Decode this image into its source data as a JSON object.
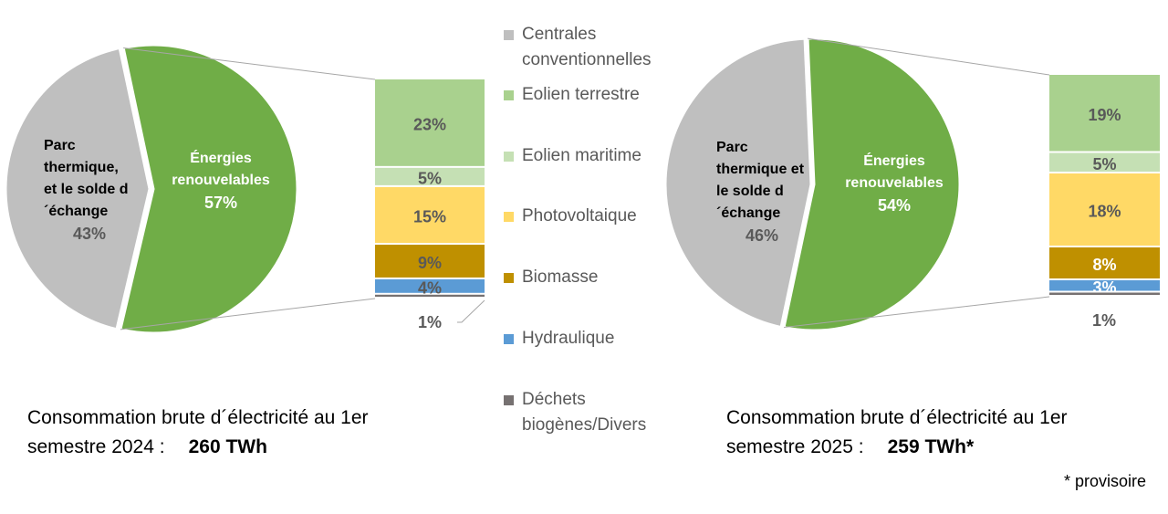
{
  "legend": [
    {
      "label": "Centrales conventionnelles",
      "color": "#bfbfbf"
    },
    {
      "label": "Eolien terrestre",
      "color": "#a9d18e"
    },
    {
      "label": "Eolien maritime",
      "color": "#c5e0b4"
    },
    {
      "label": "Photovoltaique",
      "color": "#ffd966"
    },
    {
      "label": "Biomasse",
      "color": "#bf9000"
    },
    {
      "label": "Hydraulique",
      "color": "#5b9bd5"
    },
    {
      "label": "Déchets biogènes/Divers",
      "color": "#767171"
    }
  ],
  "chart_data": [
    {
      "type": "pie",
      "pie": [
        {
          "name": "Parc thermique, et le solde d´échange",
          "value": 43,
          "label": "43%",
          "color": "#bfbfbf"
        },
        {
          "name": "Énergies renouvelables",
          "value": 57,
          "label": "57%",
          "color": "#70ad47"
        }
      ],
      "breakdown": [
        {
          "name": "Eolien terrestre",
          "value": 23,
          "label": "23%"
        },
        {
          "name": "Eolien maritime",
          "value": 5,
          "label": "5%"
        },
        {
          "name": "Photovoltaique",
          "value": 15,
          "label": "15%"
        },
        {
          "name": "Biomasse",
          "value": 9,
          "label": "9%"
        },
        {
          "name": "Hydraulique",
          "value": 4,
          "label": "4%"
        },
        {
          "name": "Déchets biogènes/Divers",
          "value": 1,
          "label": "1%"
        }
      ],
      "caption": "Consommation brute d´électricité au 1er semestre 2024 :",
      "total": "260 TWh"
    },
    {
      "type": "pie",
      "pie": [
        {
          "name": "Parc thermique et le solde d´échange",
          "value": 46,
          "label": "46%",
          "color": "#bfbfbf"
        },
        {
          "name": "Énergies renouvelables",
          "value": 54,
          "label": "54%",
          "color": "#70ad47"
        }
      ],
      "breakdown": [
        {
          "name": "Eolien terrestre",
          "value": 19,
          "label": "19%"
        },
        {
          "name": "Eolien maritime",
          "value": 5,
          "label": "5%"
        },
        {
          "name": "Photovoltaique",
          "value": 18,
          "label": "18%"
        },
        {
          "name": "Biomasse",
          "value": 8,
          "label": "8%"
        },
        {
          "name": "Hydraulique",
          "value": 3,
          "label": "3%"
        },
        {
          "name": "Déchets biogènes/Divers",
          "value": 1,
          "label": "1%"
        }
      ],
      "caption": "Consommation brute d´électricité au 1er semestre 2025 :",
      "total": "259 TWh*"
    }
  ],
  "footnote": "* provisoire"
}
